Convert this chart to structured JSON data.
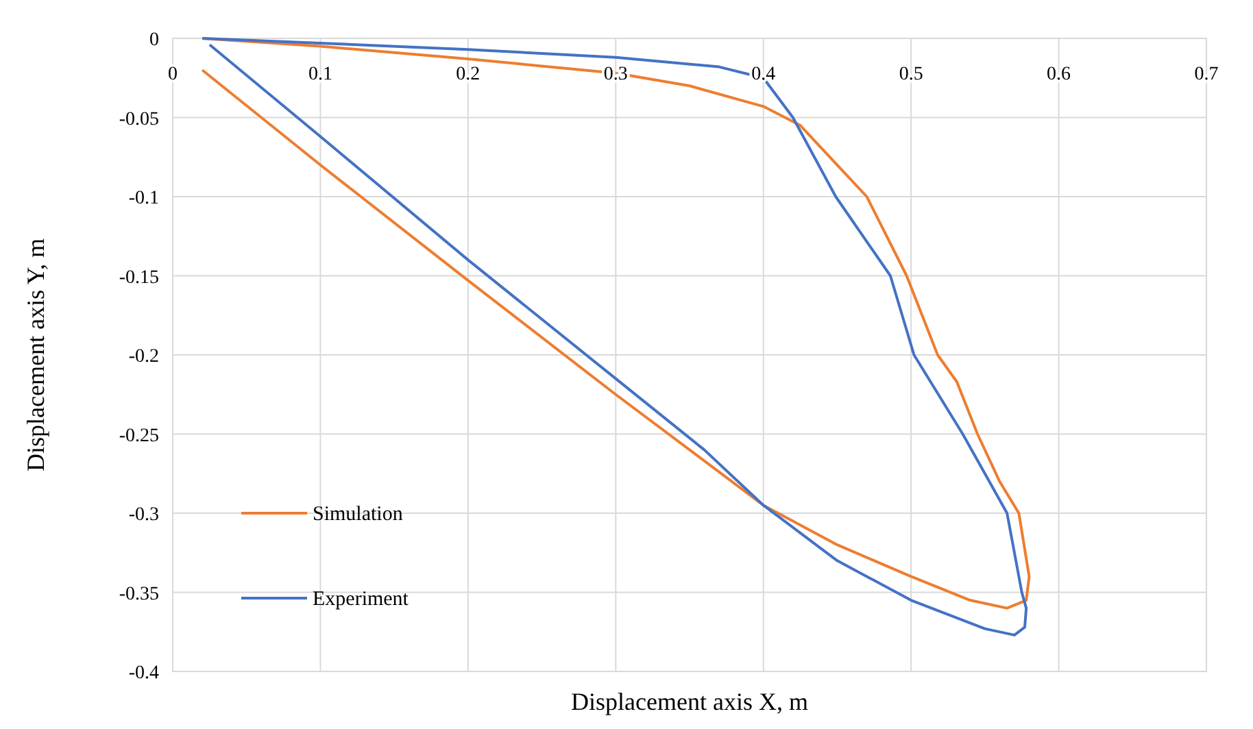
{
  "chart_data": {
    "type": "line",
    "xlabel": "Displacement axis X, m",
    "ylabel": "Displacement axis Y, m",
    "xlim": [
      0,
      0.7
    ],
    "xticks": [
      0,
      0.1,
      0.2,
      0.3,
      0.4,
      0.5,
      0.6,
      0.7
    ],
    "ylim": [
      -0.4,
      0
    ],
    "yticks": [
      0,
      -0.05,
      -0.1,
      -0.15,
      -0.2,
      -0.25,
      -0.3,
      -0.35,
      -0.4
    ],
    "grid": true,
    "legend": "bottom left",
    "line_style": "solid",
    "series": [
      {
        "name": "Simulation",
        "color": "#ed7d31",
        "x": [
          0.02,
          0.1,
          0.2,
          0.3,
          0.35,
          0.4,
          0.425,
          0.45,
          0.47,
          0.497,
          0.518,
          0.531,
          0.545,
          0.56,
          0.573,
          0.58,
          0.578,
          0.565,
          0.54,
          0.5,
          0.45,
          0.4,
          0.3,
          0.2,
          0.1,
          0.02
        ],
        "values": [
          0,
          -0.005,
          -0.013,
          -0.022,
          -0.03,
          -0.043,
          -0.055,
          -0.08,
          -0.1,
          -0.15,
          -0.2,
          -0.217,
          -0.25,
          -0.28,
          -0.3,
          -0.34,
          -0.355,
          -0.36,
          -0.355,
          -0.34,
          -0.32,
          -0.295,
          -0.225,
          -0.153,
          -0.08,
          -0.02
        ]
      },
      {
        "name": "Experiment",
        "color": "#4472c4",
        "x": [
          0.02,
          0.1,
          0.2,
          0.3,
          0.37,
          0.4,
          0.42,
          0.449,
          0.486,
          0.502,
          0.535,
          0.565,
          0.575,
          0.578,
          0.577,
          0.57,
          0.55,
          0.5,
          0.45,
          0.4,
          0.36,
          0.3,
          0.2,
          0.1,
          0.025
        ],
        "values": [
          0,
          -0.003,
          -0.007,
          -0.012,
          -0.018,
          -0.025,
          -0.05,
          -0.1,
          -0.15,
          -0.2,
          -0.25,
          -0.3,
          -0.35,
          -0.36,
          -0.372,
          -0.377,
          -0.373,
          -0.355,
          -0.33,
          -0.295,
          -0.26,
          -0.215,
          -0.14,
          -0.062,
          -0.004
        ]
      }
    ]
  }
}
